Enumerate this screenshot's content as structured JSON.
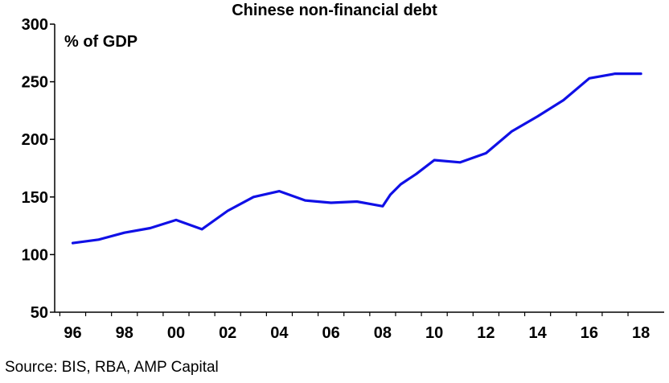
{
  "chart_data": {
    "type": "line",
    "title": "Chinese non-financial debt",
    "unit_label": "% of GDP",
    "source": "Source: BIS, RBA, AMP Capital",
    "xlabel": "",
    "ylabel": "",
    "xlim": [
      1995.3,
      2018.9
    ],
    "ylim": [
      50,
      300
    ],
    "yticks": [
      50,
      100,
      150,
      200,
      250,
      300
    ],
    "xtick_labels": [
      "96",
      "98",
      "00",
      "02",
      "04",
      "06",
      "08",
      "10",
      "12",
      "14",
      "16",
      "18"
    ],
    "xtick_years": [
      1996,
      1998,
      2000,
      2002,
      2004,
      2006,
      2008,
      2010,
      2012,
      2014,
      2016,
      2018
    ],
    "grid": false,
    "colors": {
      "line": "#1010e6",
      "axis": "#000000"
    },
    "series": [
      {
        "x": [
          1996,
          1997,
          1998,
          1999,
          2000,
          2001,
          2002,
          2003,
          2004,
          2005,
          2006,
          2007,
          2008,
          2008.3,
          2008.7,
          2009.3,
          2010,
          2011,
          2012,
          2013,
          2014,
          2015,
          2016,
          2017,
          2018
        ],
        "values": [
          110,
          113,
          119,
          123,
          130,
          122,
          138,
          150,
          155,
          147,
          145,
          146,
          142,
          152,
          161,
          170,
          182,
          180,
          188,
          207,
          220,
          234,
          253,
          257,
          257
        ]
      }
    ]
  }
}
